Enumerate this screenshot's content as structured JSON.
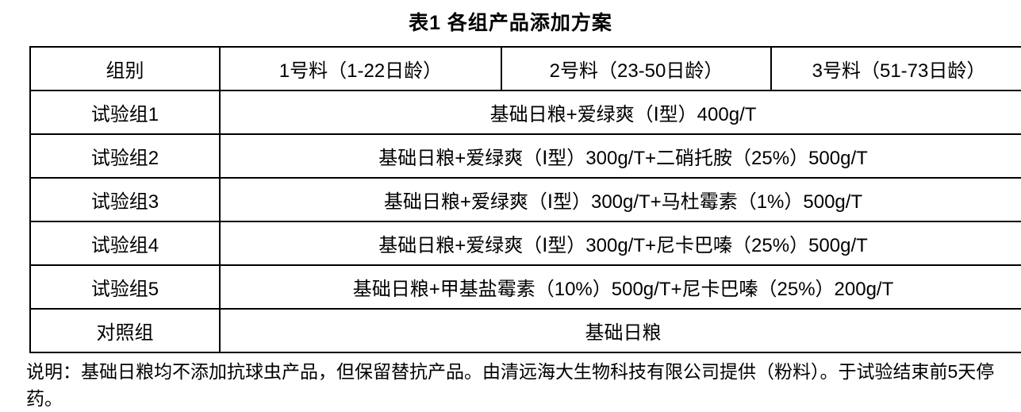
{
  "title": "表1 各组产品添加方案",
  "table": {
    "headers": [
      "组别",
      "1号料（1-22日龄）",
      "2号料（23-50日龄）",
      "3号料（51-73日龄）"
    ],
    "rows": [
      {
        "group": "试验组1",
        "scheme": "基础日粮+爱绿爽（Ⅰ型）400g/T"
      },
      {
        "group": "试验组2",
        "scheme": "基础日粮+爱绿爽（Ⅰ型）300g/T+二硝托胺（25%）500g/T"
      },
      {
        "group": "试验组3",
        "scheme": "基础日粮+爱绿爽（Ⅰ型）300g/T+马杜霉素（1%）500g/T"
      },
      {
        "group": "试验组4",
        "scheme": "基础日粮+爱绿爽（Ⅰ型）300g/T+尼卡巴嗪（25%）500g/T"
      },
      {
        "group": "试验组5",
        "scheme": "基础日粮+甲基盐霉素（10%）500g/T+尼卡巴嗪（25%）200g/T"
      },
      {
        "group": "对照组",
        "scheme": "基础日粮"
      }
    ]
  },
  "note": "说明：基础日粮均不添加抗球虫产品，但保留替抗产品。由清远海大生物科技有限公司提供（粉料）。于试验结束前5天停药。"
}
